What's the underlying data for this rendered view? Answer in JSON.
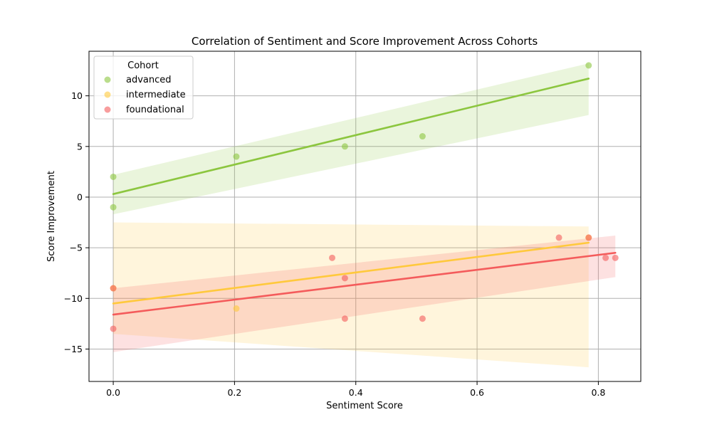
{
  "chart_data": {
    "type": "scatter",
    "title": "Correlation of Sentiment and Score Improvement Across Cohorts",
    "xlabel": "Sentiment Score",
    "ylabel": "Score Improvement",
    "xlim": [
      -0.04,
      0.87
    ],
    "ylim": [
      -18.2,
      14.4
    ],
    "xticks": [
      0.0,
      0.2,
      0.4,
      0.6,
      0.8
    ],
    "xtick_labels": [
      "0.0",
      "0.2",
      "0.4",
      "0.6",
      "0.8"
    ],
    "yticks": [
      -15,
      -10,
      -5,
      0,
      5,
      10
    ],
    "ytick_labels": [
      "−15",
      "−10",
      "−5",
      "0",
      "5",
      "10"
    ],
    "grid": true,
    "legend": {
      "title": "Cohort",
      "placement": "top-left"
    },
    "series": [
      {
        "name": "advanced",
        "color": "#8cc63f",
        "points": [
          [
            0.0,
            2
          ],
          [
            0.0,
            -1
          ],
          [
            0.203,
            4
          ],
          [
            0.382,
            5
          ],
          [
            0.51,
            6
          ],
          [
            0.784,
            13
          ]
        ],
        "fit": {
          "x": [
            0.0,
            0.784
          ],
          "y": [
            0.3,
            11.7
          ]
        },
        "ci": {
          "x": [
            0.0,
            0.784
          ],
          "lower": [
            -1.7,
            8.1
          ],
          "upper": [
            2.2,
            13.2
          ]
        }
      },
      {
        "name": "intermediate",
        "color": "#ffc93c",
        "points": [
          [
            0.0,
            -9
          ],
          [
            0.203,
            -11
          ],
          [
            0.784,
            -4
          ]
        ],
        "fit": {
          "x": [
            0.0,
            0.784
          ],
          "y": [
            -10.5,
            -4.5
          ]
        },
        "ci": {
          "x": [
            0.0,
            0.784
          ],
          "lower": [
            -13.5,
            -16.8
          ],
          "upper": [
            -2.5,
            -2.9
          ]
        }
      },
      {
        "name": "foundational",
        "color": "#f45b5b",
        "points": [
          [
            0.0,
            -9
          ],
          [
            0.0,
            -13
          ],
          [
            0.361,
            -6
          ],
          [
            0.382,
            -8
          ],
          [
            0.382,
            -12
          ],
          [
            0.51,
            -12
          ],
          [
            0.735,
            -4
          ],
          [
            0.784,
            -4
          ],
          [
            0.812,
            -6
          ],
          [
            0.828,
            -6
          ]
        ],
        "fit": {
          "x": [
            0.0,
            0.828
          ],
          "y": [
            -11.6,
            -5.5
          ]
        },
        "ci": {
          "x": [
            0.0,
            0.828
          ],
          "lower": [
            -15.3,
            -7.9
          ],
          "upper": [
            -9.0,
            -3.8
          ]
        }
      }
    ]
  }
}
